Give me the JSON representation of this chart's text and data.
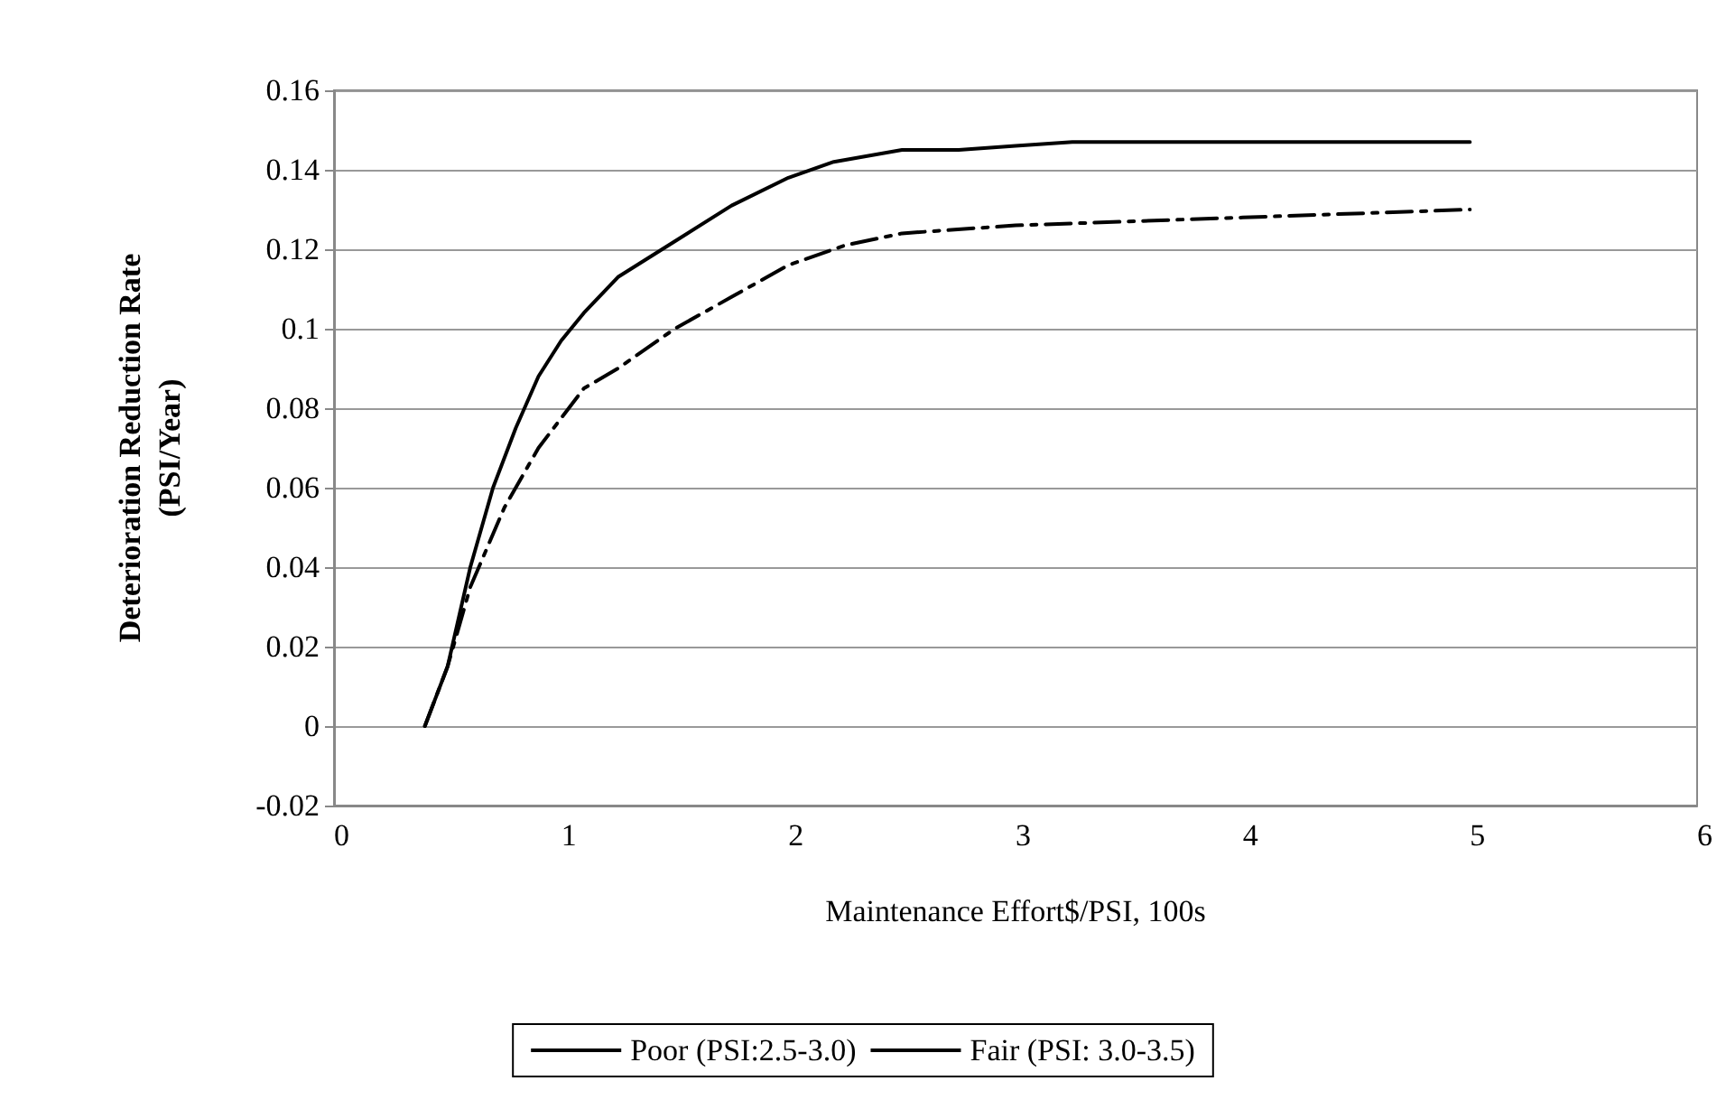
{
  "chart_data": {
    "type": "line",
    "xlabel": "Maintenance Effort$/PSI, 100s",
    "ylabel": "Deterioration Reduction Rate\n(PSI/Year)",
    "xlim": [
      0,
      6
    ],
    "xticks": [
      0,
      1,
      2,
      3,
      4,
      5,
      6
    ],
    "ylim": [
      -0.02,
      0.16
    ],
    "yticks": [
      -0.02,
      0,
      0.02,
      0.04,
      0.06,
      0.08,
      0.1,
      0.12,
      0.14,
      0.16
    ],
    "grid": "y",
    "legend": "bottom",
    "marker": "none",
    "series": [
      {
        "name": "Poor (PSI:2.5-3.0)",
        "color": "#000000",
        "line_style": "solid",
        "x": [
          0.4,
          0.5,
          0.6,
          0.7,
          0.8,
          0.9,
          1,
          1.1,
          1.25,
          1.5,
          1.75,
          2,
          2.2,
          2.5,
          2.75,
          3,
          3.25,
          4,
          5
        ],
        "values": [
          0,
          0.015,
          0.04,
          0.06,
          0.075,
          0.088,
          0.097,
          0.104,
          0.113,
          0.122,
          0.131,
          0.138,
          0.142,
          0.145,
          0.145,
          0.146,
          0.147,
          0.147,
          0.147
        ]
      },
      {
        "name": "Fair (PSI: 3.0-3.5)",
        "color": "#000000",
        "line_style": "dashed",
        "x": [
          0.4,
          0.5,
          0.6,
          0.75,
          0.9,
          1.1,
          1.25,
          1.5,
          1.75,
          2,
          2.25,
          2.5,
          3,
          4,
          5
        ],
        "values": [
          0,
          0.015,
          0.035,
          0.055,
          0.07,
          0.085,
          0.09,
          0.1,
          0.108,
          0.116,
          0.121,
          0.124,
          0.126,
          0.128,
          0.13
        ]
      }
    ]
  }
}
